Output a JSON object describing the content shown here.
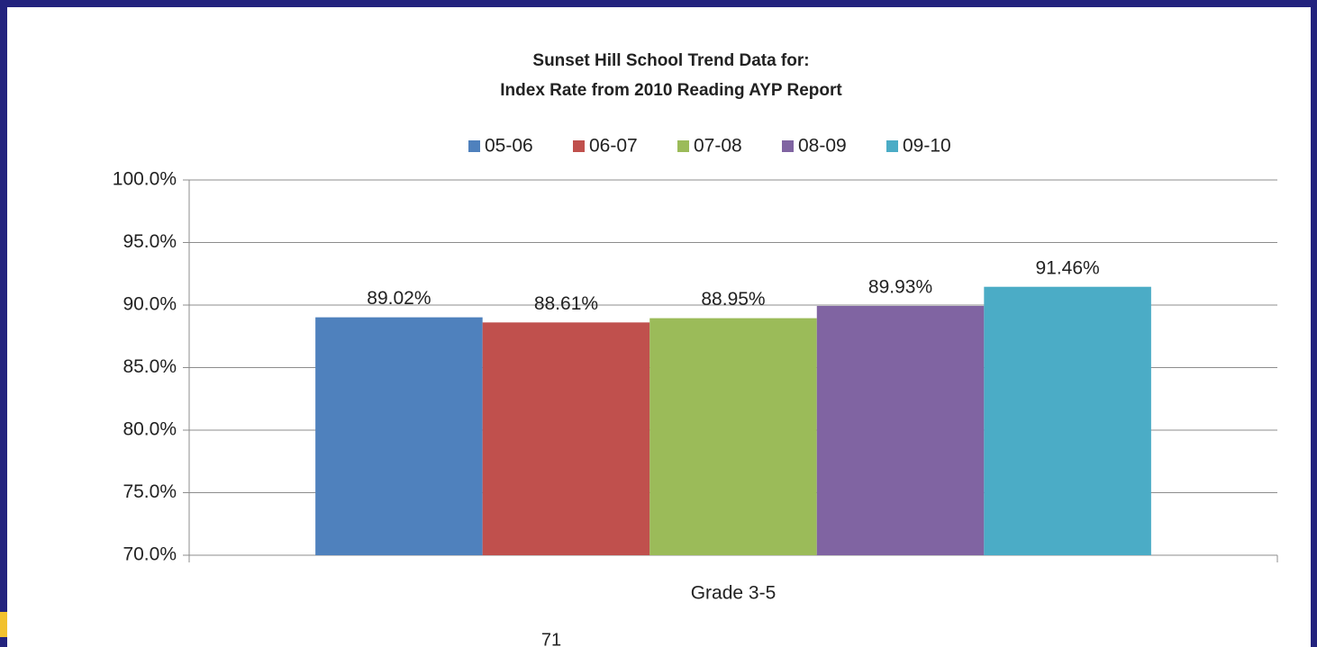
{
  "chart_data": {
    "type": "bar",
    "title": "Sunset Hill School Trend Data for:",
    "subtitle": "Index Rate from 2010  Reading AYP Report",
    "categories": [
      "Grade 3-5"
    ],
    "series": [
      {
        "name": "05-06",
        "color": "#4f81bd",
        "values": [
          89.02
        ],
        "value_labels": [
          "89.02%"
        ]
      },
      {
        "name": "06-07",
        "color": "#c0504d",
        "values": [
          88.61
        ],
        "value_labels": [
          "88.61%"
        ]
      },
      {
        "name": "07-08",
        "color": "#9bbb59",
        "values": [
          88.95
        ],
        "value_labels": [
          "88.95%"
        ]
      },
      {
        "name": "08-09",
        "color": "#8064a2",
        "values": [
          89.93
        ],
        "value_labels": [
          "89.93%"
        ]
      },
      {
        "name": "09-10",
        "color": "#4bacc6",
        "values": [
          91.46
        ],
        "value_labels": [
          "91.46%"
        ]
      }
    ],
    "ylim": [
      70,
      100
    ],
    "yticks": [
      {
        "value": 70,
        "label": "70.0%"
      },
      {
        "value": 75,
        "label": "75.0%"
      },
      {
        "value": 80,
        "label": "80.0%"
      },
      {
        "value": 85,
        "label": "85.0%"
      },
      {
        "value": 90,
        "label": "90.0%"
      },
      {
        "value": 95,
        "label": "95.0%"
      },
      {
        "value": 100,
        "label": "100.0%"
      }
    ],
    "grid": true,
    "legend": "top"
  },
  "page_number": "71"
}
